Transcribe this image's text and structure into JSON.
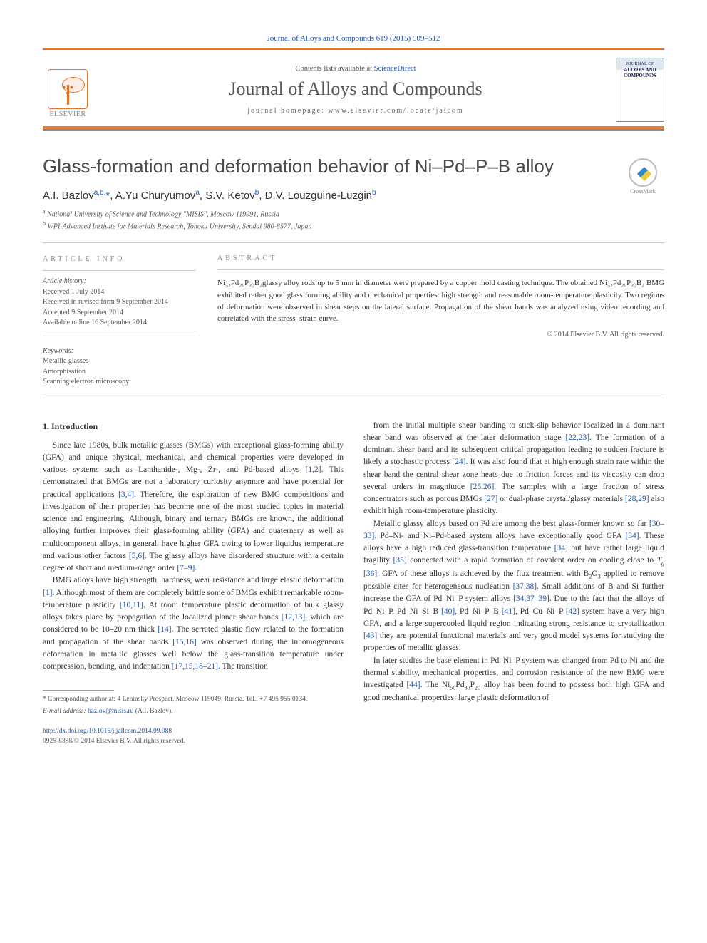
{
  "colors": {
    "accent_orange": "#e6732a",
    "link_blue": "#2255aa",
    "text_gray": "#555555",
    "heading_gray": "#4a4a4a"
  },
  "typography": {
    "title_fontsize_pt": 20,
    "body_fontsize_pt": 9,
    "abstract_fontsize_pt": 8.5,
    "font_family_title": "Helvetica Neue, Arial, sans-serif",
    "font_family_body": "Georgia, serif"
  },
  "header": {
    "citation": "Journal of Alloys and Compounds 619 (2015) 509–512",
    "contents_text": "Contents lists available at ",
    "contents_link": "ScienceDirect",
    "journal_name": "Journal of Alloys and Compounds",
    "homepage_label": "journal homepage: www.elsevier.com/locate/jalcom",
    "publisher_logo_label": "ELSEVIER",
    "cover_title_top": "JOURNAL OF",
    "cover_title_main": "ALLOYS AND COMPOUNDS"
  },
  "crossmark_label": "CrossMark",
  "title": "Glass-formation and deformation behavior of Ni–Pd–P–B alloy",
  "authors": [
    {
      "name": "A.I. Bazlov",
      "affil": "a,b,",
      "corresponding": true
    },
    {
      "name": "A.Yu Churyumov",
      "affil": "a"
    },
    {
      "name": "S.V. Ketov",
      "affil": "b"
    },
    {
      "name": "D.V. Louzguine-Luzgin",
      "affil": "b"
    }
  ],
  "affiliations": {
    "a": "National University of Science and Technology \"MISIS\", Moscow 119991, Russia",
    "b": "WPI-Advanced Institute for Materials Research, Tohoku University, Sendai 980-8577, Japan"
  },
  "article_info": {
    "heading": "ARTICLE INFO",
    "history_heading": "Article history:",
    "history": [
      "Received 1 July 2014",
      "Received in revised form 9 September 2014",
      "Accepted 9 September 2014",
      "Available online 16 September 2014"
    ],
    "keywords_heading": "Keywords:",
    "keywords": [
      "Metallic glasses",
      "Amorphisation",
      "Scanning electron microscopy"
    ]
  },
  "abstract": {
    "heading": "ABSTRACT",
    "text": "Ni₅₂Pd₂₆P₂₀B₂glassy alloy rods up to 5 mm in diameter were prepared by a copper mold casting technique. The obtained Ni₅₂Pd₂₆P₂₀B₂ BMG exhibited rather good glass forming ability and mechanical properties: high strength and reasonable room-temperature plasticity. Two regions of deformation were observed in shear steps on the lateral surface. Propagation of the shear bands was analyzed using video recording and correlated with the stress–strain curve.",
    "copyright": "© 2014 Elsevier B.V. All rights reserved."
  },
  "sections": {
    "intro_heading": "1. Introduction",
    "col1_p1": "Since late 1980s, bulk metallic glasses (BMGs) with exceptional glass-forming ability (GFA) and unique physical, mechanical, and chemical properties were developed in various systems such as Lanthanide-, Mg-, Zr-, and Pd-based alloys [1,2]. This demonstrated that BMGs are not a laboratory curiosity anymore and have potential for practical applications [3,4]. Therefore, the exploration of new BMG compositions and investigation of their properties has become one of the most studied topics in material science and engineering. Although, binary and ternary BMGs are known, the additional alloying further improves their glass-forming ability (GFA) and quaternary as well as multicomponent alloys, in general, have higher GFA owing to lower liquidus temperature and various other factors [5,6]. The glassy alloys have disordered structure with a certain degree of short and medium-range order [7–9].",
    "col1_p2": "BMG alloys have high strength, hardness, wear resistance and large elastic deformation [1]. Although most of them are completely brittle some of BMGs exhibit remarkable room-temperature plasticity [10,11]. At room temperature plastic deformation of bulk glassy alloys takes place by propagation of the localized planar shear bands [12,13], which are considered to be 10–20 nm thick [14]. The serrated plastic flow related to the formation and propagation of the shear bands [15,16] was observed during the inhomogeneous deformation in metallic glasses well below the glass-transition temperature under compression, bending, and indentation [17,15,18–21]. The transition",
    "col2_p1": "from the initial multiple shear banding to stick-slip behavior localized in a dominant shear band was observed at the later deformation stage [22,23]. The formation of a dominant shear band and its subsequent critical propagation leading to sudden fracture is likely a stochastic process [24]. It was also found that at high enough strain rate within the shear band the central shear zone heats due to friction forces and its viscosity can drop several orders in magnitude [25,26]. The samples with a large fraction of stress concentrators such as porous BMGs [27] or dual-phase crystal/glassy materials [28,29] also exhibit high room-temperature plasticity.",
    "col2_p2": "Metallic glassy alloys based on Pd are among the best glass-former known so far [30–33]. Pd–Ni- and Ni–Pd-based system alloys have exceptionally good GFA [34]. These alloys have a high reduced glass-transition temperature [34] but have rather large liquid fragility [35] connected with a rapid formation of covalent order on cooling close to Tg [36]. GFA of these alloys is achieved by the flux treatment with B₂O₃ applied to remove possible cites for heterogeneous nucleation [37,38]. Small additions of B and Si further increase the GFA of Pd–Ni–P system alloys [34,37–39]. Due to the fact that the alloys of Pd–Ni–P, Pd–Ni–Si–B [40], Pd–Ni–P–B [41], Pd–Cu–Ni–P [42] system have a very high GFA, and a large supercooled liquid region indicating strong resistance to crystallization [43] they are potential functional materials and very good model systems for studying the properties of metallic glasses.",
    "col2_p3": "In later studies the base element in Pd–Ni–P system was changed from Pd to Ni and the thermal stability, mechanical properties, and corrosion resistance of the new BMG were investigated [44]. The Ni₅₀Pd₃₀P₂₀ alloy has been found to possess both high GFA and good mechanical properties: large plastic deformation of"
  },
  "footnote": {
    "corr_label": "* Corresponding author at: 4 Leninsky Prospect, Moscow 119049, Russia. Tel.: +7 495 955 0134.",
    "email_label": "E-mail address:",
    "email": "bazlov@misis.ru",
    "email_suffix": "(A.I. Bazlov)."
  },
  "doi": {
    "url": "http://dx.doi.org/10.1016/j.jallcom.2014.09.088",
    "issn_line": "0925-8388/© 2014 Elsevier B.V. All rights reserved."
  }
}
